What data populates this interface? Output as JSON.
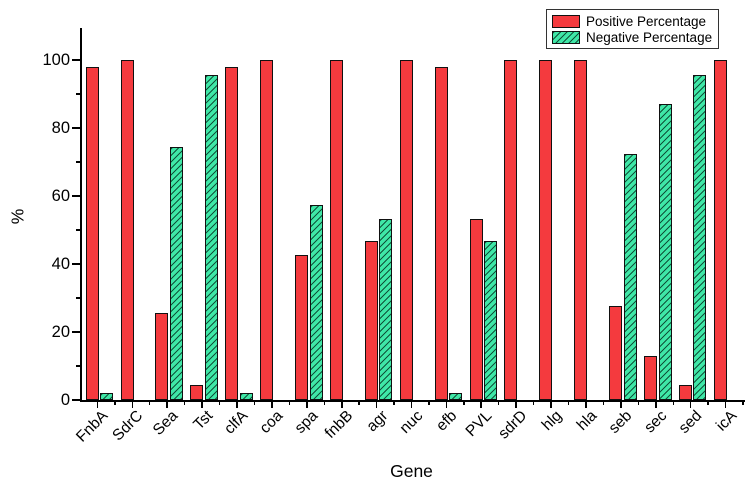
{
  "chart_data": {
    "type": "bar",
    "title": "",
    "xlabel": "Gene",
    "ylabel": "%",
    "categories": [
      "FnbA",
      "SdrC",
      "Sea",
      "Tst",
      "clfA",
      "coa",
      "spa",
      "fnbB",
      "agr",
      "nuc",
      "efb",
      "PVL",
      "sdrD",
      "hlg",
      "hla",
      "seb",
      "sec",
      "sed",
      "icA"
    ],
    "series": [
      {
        "name": "Positive Percentage",
        "color": "#f43a3e",
        "hatch": false,
        "values": [
          97.9,
          100,
          25.5,
          4.3,
          97.9,
          100,
          42.6,
          100,
          46.8,
          100,
          97.9,
          53.2,
          100,
          100,
          100,
          27.7,
          12.8,
          4.3,
          100
        ]
      },
      {
        "name": "Negative Percentage",
        "color": "#3fe7a7",
        "hatch": true,
        "values": [
          2.1,
          0,
          74.5,
          95.7,
          2.1,
          0,
          57.4,
          0,
          53.2,
          0,
          2.1,
          46.8,
          0,
          0,
          0,
          72.3,
          87.2,
          95.7,
          0
        ]
      }
    ],
    "ylim": [
      0,
      109
    ],
    "y_major_ticks": [
      0,
      20,
      40,
      60,
      80,
      100
    ],
    "y_minor_ticks": [
      10,
      30,
      50,
      70,
      90
    ],
    "grid": false,
    "legend_position": "top-right",
    "axis_color": "#000000",
    "bar_outline_color": "#111111"
  }
}
